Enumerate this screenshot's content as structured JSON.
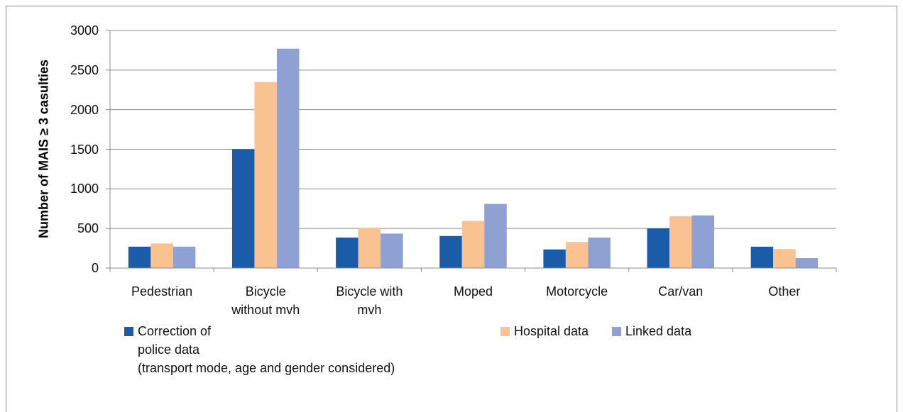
{
  "chart_data": {
    "type": "bar",
    "y_label": "Number of MAIS ≥ 3 casulties",
    "categories": [
      "Pedestrian",
      "Bicycle\nwithout mvh",
      "Bicycle with\nmvh",
      "Moped",
      "Motorcycle",
      "Car/van",
      "Other"
    ],
    "series": [
      {
        "name": "Correction of\npolice data\n(transport mode, age and gender considered)",
        "color": "#1a5ca8",
        "values": [
          270,
          1500,
          385,
          405,
          235,
          500,
          270
        ]
      },
      {
        "name": "Hospital data",
        "color": "#fac191",
        "values": [
          310,
          2350,
          510,
          595,
          330,
          655,
          240
        ]
      },
      {
        "name": "Linked data",
        "color": "#8fa1d2",
        "values": [
          270,
          2770,
          435,
          810,
          385,
          665,
          125
        ]
      }
    ],
    "ylim": [
      0,
      3000
    ],
    "yticks": [
      0,
      500,
      1000,
      1500,
      2000,
      2500,
      3000
    ],
    "grid": true,
    "legend": "bottom"
  }
}
